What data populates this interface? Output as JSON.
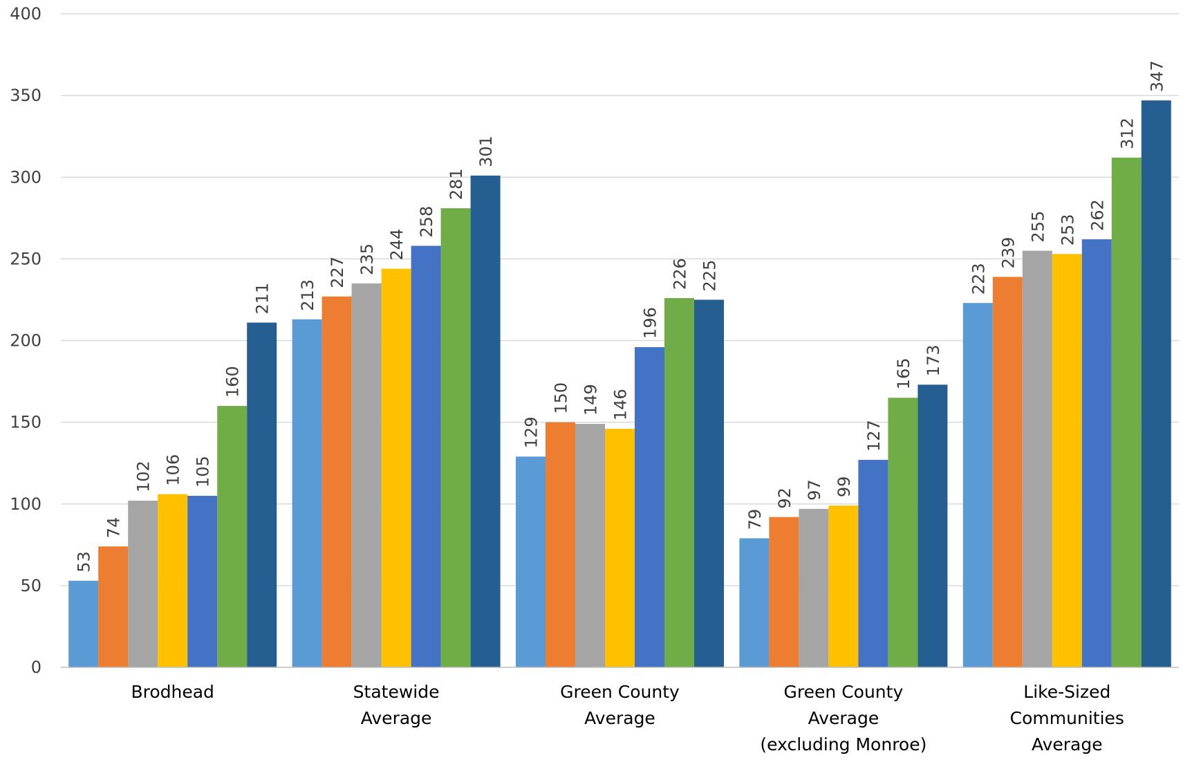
{
  "chart_data": {
    "type": "bar",
    "title": "",
    "xlabel": "",
    "ylabel": "",
    "ylim": [
      0,
      400
    ],
    "yticks": [
      0,
      50,
      100,
      150,
      200,
      250,
      300,
      350,
      400
    ],
    "grid": true,
    "legend": "none",
    "categories": [
      "Brodhead",
      "Statewide Average",
      "Green County Average",
      "Green County Average (excluding Monroe)",
      "Like-Sized Communities Average"
    ],
    "category_lines": [
      [
        "Brodhead"
      ],
      [
        "Statewide",
        "Average"
      ],
      [
        "Green County",
        "Average"
      ],
      [
        "Green County",
        "Average",
        "(excluding Monroe)"
      ],
      [
        "Like-Sized",
        "Communities",
        "Average"
      ]
    ],
    "series": [
      {
        "color": "#5B9BD5",
        "values": [
          53,
          213,
          129,
          79,
          223
        ]
      },
      {
        "color": "#ED7D31",
        "values": [
          74,
          227,
          150,
          92,
          239
        ]
      },
      {
        "color": "#A5A5A5",
        "values": [
          102,
          235,
          149,
          97,
          255
        ]
      },
      {
        "color": "#FFC000",
        "values": [
          106,
          244,
          146,
          99,
          253
        ]
      },
      {
        "color": "#4472C4",
        "values": [
          105,
          258,
          196,
          127,
          262
        ]
      },
      {
        "color": "#70AD47",
        "values": [
          160,
          281,
          226,
          165,
          312
        ]
      },
      {
        "color": "#255E91",
        "values": [
          211,
          301,
          225,
          173,
          347
        ]
      }
    ],
    "data_labels": true
  }
}
